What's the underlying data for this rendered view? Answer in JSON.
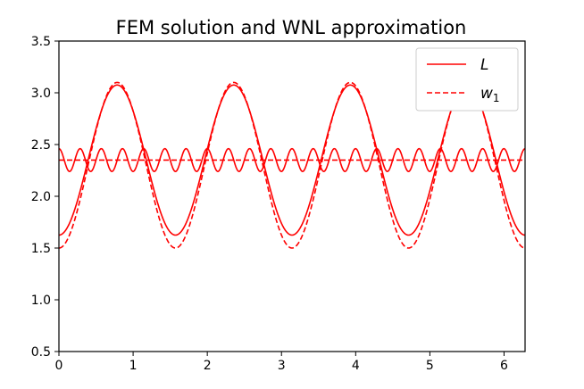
{
  "chart_data": {
    "type": "line",
    "title": "FEM solution and WNL approximation",
    "xlabel": "",
    "ylabel": "",
    "xlim": [
      0,
      6.2832
    ],
    "ylim": [
      0.5,
      3.5
    ],
    "xticks": [
      0,
      1,
      2,
      3,
      4,
      5,
      6
    ],
    "yticks": [
      0.5,
      1.0,
      1.5,
      2.0,
      2.5,
      3.0,
      3.5
    ],
    "ytick_labels": [
      "0.5",
      "1.0",
      "1.5",
      "2.0",
      "2.5",
      "3.0",
      "3.5"
    ],
    "grid": false,
    "legend_position": "top-right",
    "colors": {
      "line": "#ff0000",
      "axis": "#000000"
    },
    "sample_x": [
      0,
      0.25,
      0.5,
      0.785,
      1.0,
      1.25,
      1.5,
      1.571,
      1.75,
      2.0,
      2.25,
      2.356,
      2.5,
      2.75,
      3.0,
      3.142,
      3.25,
      3.5,
      3.75,
      3.927,
      4.0,
      4.25,
      4.5,
      4.712,
      4.75,
      5.0,
      5.25,
      5.498,
      5.75,
      6.0,
      6.283
    ],
    "series": [
      {
        "name": "L",
        "style": "solid",
        "description": "FEM solution: period-pi/2 wave between 1.625 and 3.075 plus a near-constant curve oscillating 2.24–2.46",
        "y_main_min": 1.625,
        "y_main_max": 3.075,
        "period": 1.5708,
        "y_ripple_center": 2.35,
        "y_ripple_amplitude": 0.11,
        "ripple_period": 0.2856
      },
      {
        "name": "w",
        "subscript": "1",
        "style": "dashed",
        "description": "WNL approximation: period-pi/2 wave between 1.50 and 3.10 plus a flat line at 2.35",
        "y_main_min": 1.5,
        "y_main_max": 3.1,
        "period": 1.5708,
        "y_flat": 2.35
      }
    ]
  }
}
